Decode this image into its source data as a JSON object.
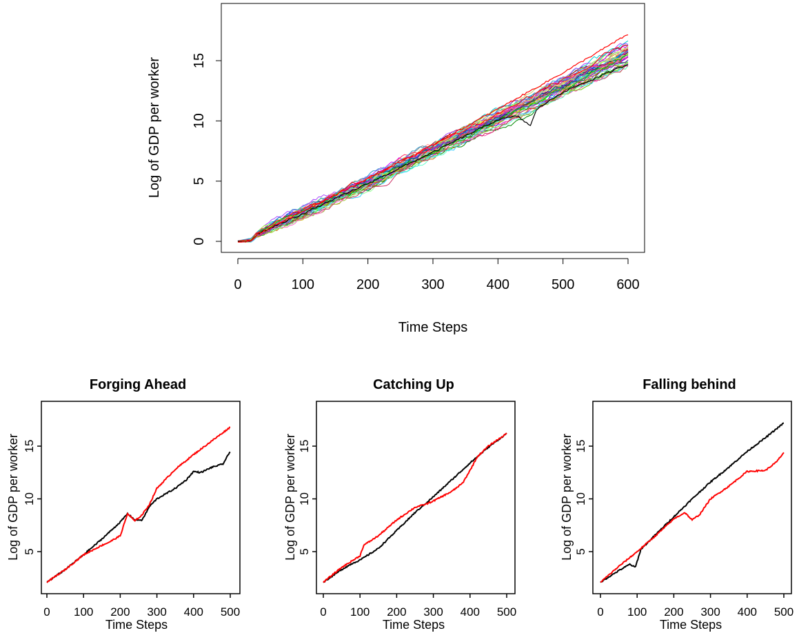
{
  "chart_data": [
    {
      "type": "line",
      "title": "",
      "xlabel": "Time Steps",
      "ylabel": "Log of GDP per worker",
      "xlim": [
        0,
        600
      ],
      "ylim": [
        -1,
        19.5
      ],
      "xticks": [
        0,
        100,
        200,
        300,
        400,
        500,
        600
      ],
      "yticks": [
        0,
        5,
        10,
        15
      ],
      "grid": false,
      "legend": "none",
      "series_count_approx": 50,
      "series_note_x": [
        0,
        20,
        30,
        100,
        200,
        300,
        400,
        500,
        600
      ],
      "series_mean_y": [
        0.0,
        0.1,
        0.6,
        2.4,
        4.9,
        7.6,
        10.2,
        12.9,
        15.5
      ],
      "series_spread_y": [
        0.05,
        0.1,
        0.15,
        0.4,
        0.5,
        0.5,
        0.7,
        0.8,
        1.0
      ],
      "highlight_series": [
        {
          "color": "#000000",
          "x": [
            0,
            20,
            30,
            100,
            200,
            300,
            400,
            430,
            450,
            460,
            500,
            600
          ],
          "y": [
            0.0,
            0.0,
            0.6,
            2.3,
            4.8,
            7.4,
            10.1,
            10.4,
            9.6,
            11.0,
            12.4,
            14.7
          ]
        },
        {
          "color": "#ff0000",
          "x": [
            0,
            20,
            30,
            100,
            200,
            300,
            400,
            500,
            600
          ],
          "y": [
            0.0,
            0.0,
            0.6,
            2.5,
            5.2,
            8.0,
            11.0,
            14.0,
            17.2
          ]
        }
      ]
    },
    {
      "type": "line",
      "title": "Forging Ahead",
      "xlabel": "Time Steps",
      "ylabel": "Log of GDP per worker",
      "xlim": [
        0,
        500
      ],
      "ylim": [
        1,
        18.5
      ],
      "xticks": [
        0,
        100,
        200,
        300,
        400,
        500
      ],
      "yticks": [
        5,
        10,
        15
      ],
      "series": [
        {
          "color": "#000000",
          "x": [
            0,
            50,
            100,
            150,
            200,
            220,
            240,
            260,
            280,
            300,
            350,
            380,
            400,
            420,
            450,
            480,
            500
          ],
          "y": [
            2.1,
            3.3,
            4.7,
            6.2,
            7.8,
            8.6,
            8.0,
            8.0,
            9.3,
            10.0,
            11.0,
            11.8,
            12.6,
            12.5,
            13.0,
            13.3,
            14.5
          ]
        },
        {
          "color": "#ff0000",
          "x": [
            0,
            50,
            100,
            150,
            170,
            200,
            220,
            240,
            260,
            280,
            300,
            350,
            400,
            450,
            500
          ],
          "y": [
            2.1,
            3.3,
            4.7,
            5.6,
            5.9,
            6.5,
            8.6,
            7.9,
            8.5,
            9.5,
            11.0,
            12.8,
            14.2,
            15.5,
            16.8
          ]
        }
      ]
    },
    {
      "type": "line",
      "title": "Catching Up",
      "xlabel": "Time Steps",
      "ylabel": "Log of GDP per worker",
      "xlim": [
        0,
        500
      ],
      "ylim": [
        1,
        18.5
      ],
      "xticks": [
        0,
        100,
        200,
        300,
        400,
        500
      ],
      "yticks": [
        5,
        10,
        15
      ],
      "series": [
        {
          "color": "#000000",
          "x": [
            0,
            50,
            80,
            100,
            150,
            200,
            250,
            300,
            350,
            400,
            450,
            500
          ],
          "y": [
            2.1,
            3.3,
            3.9,
            4.2,
            5.3,
            7.0,
            8.7,
            10.2,
            11.8,
            13.4,
            14.9,
            16.2
          ]
        },
        {
          "color": "#ff0000",
          "x": [
            0,
            50,
            100,
            110,
            150,
            200,
            250,
            280,
            300,
            350,
            380,
            400,
            420,
            450,
            500
          ],
          "y": [
            2.1,
            3.5,
            4.6,
            5.6,
            6.5,
            8.0,
            9.2,
            9.5,
            9.8,
            10.7,
            11.5,
            12.7,
            14.0,
            15.0,
            16.2
          ]
        }
      ]
    },
    {
      "type": "line",
      "title": "Falling behind",
      "xlabel": "Time Steps",
      "ylabel": "Log of GDP per worker",
      "xlim": [
        0,
        500
      ],
      "ylim": [
        1,
        18.5
      ],
      "xticks": [
        0,
        100,
        200,
        300,
        400,
        500
      ],
      "yticks": [
        5,
        10,
        15
      ],
      "series": [
        {
          "color": "#000000",
          "x": [
            0,
            50,
            80,
            95,
            110,
            150,
            200,
            250,
            300,
            350,
            400,
            450,
            500
          ],
          "y": [
            2.1,
            3.2,
            3.8,
            3.5,
            5.2,
            6.6,
            8.3,
            10.0,
            11.6,
            13.0,
            14.5,
            15.8,
            17.2
          ]
        },
        {
          "color": "#ff0000",
          "x": [
            0,
            50,
            100,
            150,
            200,
            230,
            250,
            270,
            300,
            350,
            400,
            450,
            480,
            500
          ],
          "y": [
            2.1,
            3.6,
            5.0,
            6.5,
            8.1,
            8.7,
            8.0,
            8.5,
            10.0,
            11.2,
            12.6,
            12.7,
            13.5,
            14.4
          ]
        }
      ]
    }
  ]
}
